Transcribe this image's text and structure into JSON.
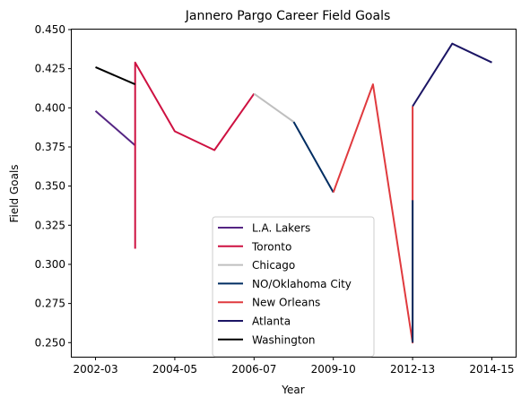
{
  "chart_data": {
    "type": "line",
    "title": "Jannero Pargo Career Field Goals",
    "xlabel": "Year",
    "ylabel": "Field Goals",
    "x_tick_labels": [
      "2002-03",
      "2004-05",
      "2006-07",
      "2009-10",
      "2012-13",
      "2014-15"
    ],
    "x_tick_positions": [
      0,
      2,
      4,
      6,
      8,
      10
    ],
    "xlim": [
      -0.6,
      10.6
    ],
    "ylim": [
      0.241,
      0.45
    ],
    "y_ticks": [
      0.25,
      0.275,
      0.3,
      0.325,
      0.35,
      0.375,
      0.4,
      0.425,
      0.45
    ],
    "y_tick_labels": [
      "0.250",
      "0.275",
      "0.300",
      "0.325",
      "0.350",
      "0.375",
      "0.400",
      "0.425",
      "0.450"
    ],
    "grid": false,
    "legend_position": "lower center",
    "series": [
      {
        "name": "L.A. Lakers",
        "color": "#552583",
        "x": [
          0,
          1
        ],
        "y": [
          0.398,
          0.376
        ]
      },
      {
        "name": "Toronto",
        "color": "#ce1141",
        "x": [
          1,
          1,
          2,
          3,
          4
        ],
        "y": [
          0.31,
          0.429,
          0.385,
          0.373,
          0.409
        ]
      },
      {
        "name": "Chicago",
        "color": "#bfbfbf",
        "x": [
          4,
          5
        ],
        "y": [
          0.409,
          0.391
        ]
      },
      {
        "name": "NO/Oklahoma City",
        "color": "#002d62",
        "x": [
          5,
          6
        ],
        "y": [
          0.391,
          0.346
        ]
      },
      {
        "name": "New Orleans",
        "color": "#e03a3e",
        "x": [
          6,
          7,
          8,
          8
        ],
        "y": [
          0.346,
          0.415,
          0.25,
          0.401
        ]
      },
      {
        "name": "Atlanta",
        "color": "#1b1564",
        "x": [
          8,
          9,
          10
        ],
        "y": [
          0.401,
          0.441,
          0.429
        ]
      },
      {
        "name": "Washington",
        "color": "#000000",
        "x": [
          0,
          1
        ],
        "y": [
          0.426,
          0.415
        ]
      }
    ],
    "extra_segments": [
      {
        "color": "#002d62",
        "x": [
          8,
          8
        ],
        "y": [
          0.25,
          0.341
        ]
      }
    ]
  }
}
